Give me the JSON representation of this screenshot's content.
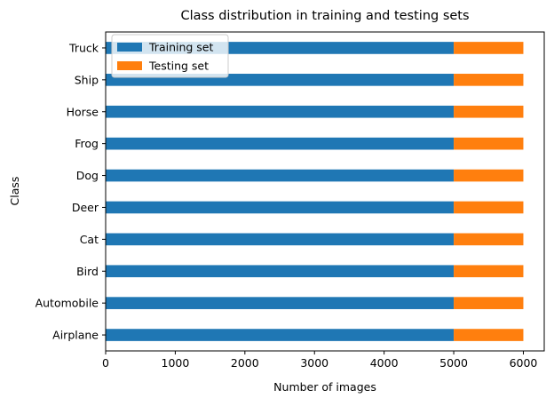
{
  "chart_data": {
    "type": "bar",
    "orientation": "horizontal",
    "stacked": true,
    "title": "Class distribution in training and testing sets",
    "xlabel": "Number of images",
    "ylabel": "Class",
    "xlim": [
      0,
      6300
    ],
    "xticks": [
      0,
      1000,
      2000,
      3000,
      4000,
      5000,
      6000
    ],
    "categories": [
      "Airplane",
      "Automobile",
      "Bird",
      "Cat",
      "Deer",
      "Dog",
      "Frog",
      "Horse",
      "Ship",
      "Truck"
    ],
    "series": [
      {
        "name": "Training set",
        "color": "#1f77b4",
        "values": [
          5000,
          5000,
          5000,
          5000,
          5000,
          5000,
          5000,
          5000,
          5000,
          5000
        ]
      },
      {
        "name": "Testing set",
        "color": "#ff7f0e",
        "values": [
          1000,
          1000,
          1000,
          1000,
          1000,
          1000,
          1000,
          1000,
          1000,
          1000
        ]
      }
    ],
    "legend": "top-left",
    "grid": false
  }
}
